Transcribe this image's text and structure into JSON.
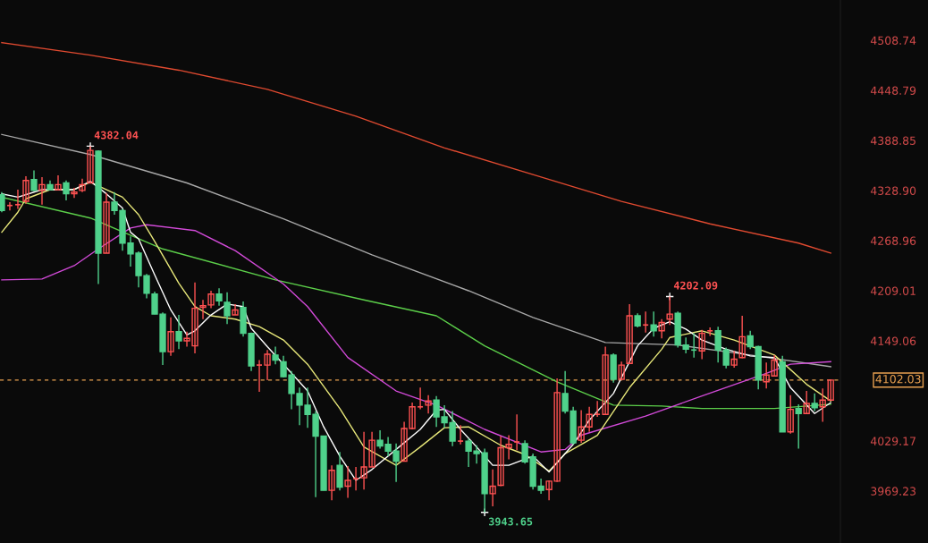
{
  "chart_data": {
    "type": "candlestick",
    "categories": [
      null,
      null,
      null,
      null,
      null,
      null,
      null,
      null,
      null,
      null,
      null,
      null,
      null,
      null,
      null,
      null,
      null,
      null,
      null,
      null,
      null,
      null,
      null,
      null,
      null,
      null,
      null,
      null,
      null,
      null,
      null,
      null,
      null,
      null,
      null,
      null,
      null,
      null,
      null,
      null,
      null,
      null,
      null,
      null,
      null,
      null,
      null,
      null,
      null,
      null,
      null,
      null,
      null,
      null,
      null,
      null,
      null,
      null,
      null,
      null,
      null,
      null,
      null,
      null,
      null,
      null,
      null,
      null,
      null,
      null,
      null,
      null,
      null,
      null,
      null,
      null,
      null,
      null,
      null,
      null,
      null,
      null,
      null,
      null,
      null,
      null,
      null,
      null,
      null,
      null,
      null,
      null,
      null,
      null,
      null,
      null,
      null,
      null,
      null,
      null,
      null,
      null,
      null,
      null
    ],
    "ohlc": [
      [
        4324,
        4327,
        4303,
        4305
      ],
      [
        4311,
        4315,
        4305,
        4311
      ],
      [
        4312,
        4330,
        4307,
        4312
      ],
      [
        4316,
        4346,
        4313,
        4341
      ],
      [
        4342,
        4353,
        4328,
        4329
      ],
      [
        4329,
        4345,
        4312,
        4336
      ],
      [
        4336,
        4341,
        4329,
        4330
      ],
      [
        4330,
        4347,
        4329,
        4336
      ],
      [
        4338,
        4341,
        4317,
        4325
      ],
      [
        4325,
        4332,
        4320,
        4327
      ],
      [
        4329,
        4343,
        4327,
        4336
      ],
      [
        4338,
        4382.04,
        4338,
        4377
      ],
      [
        4376,
        4377,
        4217,
        4254
      ],
      [
        4254,
        4326,
        4254,
        4315
      ],
      [
        4315,
        4327,
        4300,
        4305
      ],
      [
        4305,
        4307,
        4257,
        4266
      ],
      [
        4266,
        4274,
        4238,
        4253
      ],
      [
        4254,
        4256,
        4213,
        4227
      ],
      [
        4227,
        4229,
        4200,
        4206
      ],
      [
        4205,
        4208,
        4181,
        4181
      ],
      [
        4181,
        4183,
        4120,
        4136
      ],
      [
        4136,
        4177,
        4131,
        4160
      ],
      [
        4160,
        4180,
        4139,
        4149
      ],
      [
        4149,
        4160,
        4142,
        4152
      ],
      [
        4143,
        4219,
        4134,
        4188
      ],
      [
        4189,
        4198,
        4175,
        4191
      ],
      [
        4192,
        4209,
        4188,
        4205
      ],
      [
        4205,
        4212,
        4191,
        4197
      ],
      [
        4195,
        4207,
        4169,
        4179
      ],
      [
        4180,
        4193,
        4180,
        4186
      ],
      [
        4189,
        4196,
        4154,
        4158
      ],
      [
        4158,
        4159,
        4113,
        4119
      ],
      [
        4120,
        4126,
        4088,
        4120
      ],
      [
        4120,
        4138,
        4102,
        4133
      ],
      [
        4132,
        4142,
        4121,
        4126
      ],
      [
        4124,
        4131,
        4105,
        4106
      ],
      [
        4108,
        4113,
        4067,
        4086
      ],
      [
        4086,
        4093,
        4048,
        4072
      ],
      [
        4072,
        4093,
        4045,
        4061
      ],
      [
        4061,
        4065,
        3962,
        4035
      ],
      [
        4035,
        4035,
        3970,
        3970
      ],
      [
        3970,
        4000,
        3958,
        3994
      ],
      [
        4000,
        4016,
        3970,
        3974
      ],
      [
        3975,
        3999,
        3961,
        3982
      ],
      [
        3984,
        3998,
        3970,
        3984
      ],
      [
        3985,
        4040,
        3971,
        3998
      ],
      [
        3998,
        4040,
        3998,
        4030
      ],
      [
        4030,
        4042,
        4020,
        4023
      ],
      [
        4025,
        4034,
        4011,
        4017
      ],
      [
        4017,
        4026,
        3980,
        4005
      ],
      [
        4005,
        4052,
        4005,
        4044
      ],
      [
        4044,
        4075,
        4043,
        4070
      ],
      [
        4070,
        4093,
        4067,
        4070
      ],
      [
        4072,
        4084,
        4062,
        4077
      ],
      [
        4078,
        4083,
        4046,
        4058
      ],
      [
        4058,
        4072,
        4045,
        4051
      ],
      [
        4051,
        4065,
        4023,
        4029
      ],
      [
        4029,
        4048,
        4025,
        4029
      ],
      [
        4029,
        4032,
        3998,
        4017
      ],
      [
        4017,
        4024,
        4002,
        4014
      ],
      [
        4015,
        4020,
        3943.65,
        3966
      ],
      [
        3966,
        3995,
        3951,
        3975
      ],
      [
        3976,
        4035,
        3975,
        4021
      ],
      [
        4021,
        4036,
        4007,
        4025
      ],
      [
        4028,
        4061,
        4018,
        4028
      ],
      [
        4026,
        4030,
        4002,
        4004
      ],
      [
        4010,
        4014,
        3971,
        3975
      ],
      [
        3975,
        3984,
        3966,
        3970
      ],
      [
        3971,
        3982,
        3958,
        3981
      ],
      [
        3981,
        4104,
        3980,
        4087
      ],
      [
        4086,
        4113,
        4062,
        4065
      ],
      [
        4065,
        4070,
        4025,
        4027
      ],
      [
        4030,
        4066,
        4027,
        4046
      ],
      [
        4046,
        4070,
        4040,
        4061
      ],
      [
        4061,
        4077,
        4058,
        4061
      ],
      [
        4061,
        4142,
        4061,
        4132
      ],
      [
        4132,
        4134,
        4099,
        4103
      ],
      [
        4103,
        4124,
        4103,
        4120
      ],
      [
        4122,
        4193,
        4122,
        4179
      ],
      [
        4179,
        4182,
        4165,
        4167
      ],
      [
        4168,
        4184,
        4159,
        4168
      ],
      [
        4168,
        4184,
        4154,
        4161
      ],
      [
        4161,
        4175,
        4152,
        4171
      ],
      [
        4175,
        4202.09,
        4168,
        4181
      ],
      [
        4182,
        4184,
        4141,
        4144
      ],
      [
        4144,
        4153,
        4134,
        4139
      ],
      [
        4138,
        4158,
        4129,
        4138
      ],
      [
        4137,
        4162,
        4127,
        4158
      ],
      [
        4161,
        4165,
        4155,
        4161
      ],
      [
        4161,
        4166,
        4123,
        4138
      ],
      [
        4138,
        4141,
        4116,
        4120
      ],
      [
        4120,
        4137,
        4117,
        4127
      ],
      [
        4129,
        4179,
        4128,
        4154
      ],
      [
        4155,
        4161,
        4139,
        4142
      ],
      [
        4142,
        4143,
        4091,
        4102
      ],
      [
        4100,
        4123,
        4092,
        4108
      ],
      [
        4107,
        4132,
        4107,
        4126
      ],
      [
        4124,
        4131,
        4040,
        4040
      ],
      [
        4040,
        4084,
        4038,
        4067
      ],
      [
        4068,
        4073,
        4020,
        4062
      ],
      [
        4062,
        4089,
        4062,
        4074
      ],
      [
        4074,
        4086,
        4065,
        4069
      ],
      [
        4070,
        4092,
        4052,
        4078
      ],
      [
        4078,
        4103,
        4078,
        4102.03
      ]
    ],
    "colors": [
      "#4fd18b",
      "#ff5252",
      "#ff5252",
      "#ff5252",
      "#4fd18b",
      "#ff5252",
      "#4fd18b",
      "#ff5252",
      "#4fd18b",
      "#ff5252",
      "#ff5252",
      "#ff5252",
      "#4fd18b",
      "#ff5252",
      "#4fd18b",
      "#4fd18b",
      "#4fd18b",
      "#4fd18b",
      "#4fd18b",
      "#4fd18b",
      "#4fd18b",
      "#ff5252",
      "#4fd18b",
      "#ff5252",
      "#ff5252",
      "#ff5252",
      "#ff5252",
      "#4fd18b",
      "#4fd18b",
      "#ff5252",
      "#4fd18b",
      "#4fd18b",
      "#ff5252",
      "#ff5252",
      "#4fd18b",
      "#4fd18b",
      "#4fd18b",
      "#4fd18b",
      "#4fd18b",
      "#4fd18b",
      "#4fd18b",
      "#ff5252",
      "#4fd18b",
      "#ff5252",
      "#ff5252",
      "#ff5252",
      "#ff5252",
      "#4fd18b",
      "#4fd18b",
      "#4fd18b",
      "#ff5252",
      "#ff5252",
      "#ff5252",
      "#ff5252",
      "#4fd18b",
      "#4fd18b",
      "#4fd18b",
      "#ff5252",
      "#4fd18b",
      "#4fd18b",
      "#4fd18b",
      "#ff5252",
      "#ff5252",
      "#ff5252",
      "#ff5252",
      "#4fd18b",
      "#4fd18b",
      "#4fd18b",
      "#ff5252",
      "#ff5252",
      "#4fd18b",
      "#4fd18b",
      "#ff5252",
      "#ff5252",
      "#ff5252",
      "#ff5252",
      "#4fd18b",
      "#ff5252",
      "#ff5252",
      "#4fd18b",
      "#ff5252",
      "#4fd18b",
      "#ff5252",
      "#ff5252",
      "#4fd18b",
      "#4fd18b",
      "#4fd18b",
      "#ff5252",
      "#ff5252",
      "#4fd18b",
      "#4fd18b",
      "#ff5252",
      "#ff5252",
      "#4fd18b",
      "#4fd18b",
      "#ff5252",
      "#ff5252",
      "#4fd18b",
      "#ff5252",
      "#4fd18b",
      "#ff5252",
      "#4fd18b",
      "#ff5252",
      "#ff5252"
    ],
    "series": [
      {
        "type": "line",
        "color": "#e04a30",
        "values": [
          4506,
          null,
          null,
          null,
          null,
          null,
          null,
          null,
          null,
          null,
          null,
          4491,
          null,
          null,
          null,
          null,
          null,
          null,
          null,
          null,
          null,
          null,
          4473,
          null,
          null,
          null,
          null,
          null,
          null,
          null,
          null,
          null,
          null,
          4450,
          null,
          null,
          null,
          null,
          null,
          null,
          null,
          null,
          null,
          null,
          4418,
          null,
          null,
          null,
          null,
          null,
          null,
          null,
          null,
          null,
          null,
          4380,
          null,
          null,
          null,
          null,
          null,
          null,
          null,
          null,
          null,
          null,
          4348,
          null,
          null,
          null,
          null,
          null,
          null,
          null,
          null,
          null,
          null,
          4316,
          null,
          null,
          null,
          null,
          null,
          null,
          null,
          null,
          null,
          null,
          4289,
          null,
          null,
          null,
          null,
          null,
          null,
          null,
          null,
          null,
          null,
          4266,
          null,
          null,
          null,
          4254
        ]
      },
      {
        "type": "line",
        "color": "#a8a8a8",
        "values": [
          4396,
          null,
          null,
          null,
          null,
          null,
          null,
          null,
          null,
          null,
          null,
          4372,
          null,
          null,
          null,
          null,
          null,
          null,
          null,
          null,
          null,
          null,
          null,
          4338,
          null,
          null,
          null,
          null,
          null,
          null,
          null,
          null,
          null,
          null,
          null,
          4295,
          null,
          null,
          null,
          null,
          null,
          null,
          null,
          null,
          null,
          null,
          4252,
          null,
          null,
          null,
          null,
          null,
          null,
          null,
          null,
          null,
          null,
          null,
          4209,
          null,
          null,
          null,
          null,
          null,
          null,
          null,
          4177,
          null,
          null,
          null,
          null,
          null,
          null,
          null,
          null,
          4147,
          null,
          null,
          null,
          null,
          null,
          null,
          null,
          null,
          4144,
          null,
          null,
          null,
          null,
          null,
          null,
          null,
          null,
          4132,
          null,
          null,
          null,
          null,
          null,
          null,
          null,
          null,
          null,
          4118
        ]
      },
      {
        "type": "line",
        "color": "#5ccf4a",
        "values": [
          4321,
          null,
          null,
          null,
          null,
          null,
          null,
          null,
          null,
          null,
          null,
          4296,
          null,
          null,
          null,
          null,
          null,
          null,
          null,
          null,
          4259,
          null,
          null,
          null,
          null,
          null,
          null,
          null,
          null,
          null,
          null,
          null,
          null,
          null,
          4222,
          null,
          null,
          null,
          null,
          null,
          null,
          null,
          null,
          null,
          null,
          4198,
          null,
          null,
          null,
          null,
          null,
          null,
          null,
          null,
          4179,
          null,
          null,
          null,
          null,
          null,
          4143,
          null,
          null,
          null,
          null,
          null,
          null,
          null,
          null,
          4100,
          null,
          null,
          null,
          null,
          null,
          null,
          4072,
          null,
          null,
          null,
          null,
          null,
          4071,
          null,
          null,
          null,
          null,
          4068,
          null,
          null,
          null,
          null,
          null,
          null,
          null,
          null,
          4068,
          null,
          null,
          null,
          null,
          null,
          null,
          4073
        ]
      },
      {
        "type": "line",
        "color": "#d24ad8",
        "values": [
          4222,
          null,
          null,
          null,
          null,
          4223,
          null,
          null,
          null,
          4239,
          null,
          null,
          4259,
          null,
          null,
          null,
          4284,
          null,
          4288,
          null,
          null,
          null,
          null,
          null,
          4281,
          null,
          null,
          null,
          null,
          4257,
          null,
          null,
          null,
          null,
          null,
          4217,
          null,
          null,
          4190,
          null,
          null,
          null,
          null,
          4129,
          null,
          null,
          null,
          null,
          null,
          4089,
          null,
          null,
          null,
          null,
          4072,
          null,
          null,
          null,
          null,
          null,
          4043,
          null,
          null,
          null,
          null,
          null,
          null,
          4016,
          null,
          null,
          4019,
          null,
          4036,
          null,
          null,
          null,
          null,
          null,
          null,
          null,
          4059,
          null,
          null,
          null,
          null,
          null,
          null,
          4083,
          null,
          null,
          null,
          null,
          null,
          null,
          null,
          4110,
          null,
          null,
          4121,
          null,
          null,
          null,
          null,
          4124
        ]
      },
      {
        "type": "line",
        "color": "#e8e87a",
        "values": [
          4279,
          null,
          4303,
          4319,
          null,
          null,
          4330,
          null,
          null,
          4330,
          null,
          4339,
          null,
          null,
          null,
          4321,
          null,
          4300,
          null,
          4268,
          null,
          null,
          4218,
          null,
          4190,
          null,
          4179,
          null,
          null,
          4175,
          null,
          null,
          4166,
          null,
          null,
          4150,
          null,
          null,
          4121,
          null,
          null,
          null,
          4068,
          null,
          null,
          4022,
          null,
          null,
          null,
          4000,
          null,
          null,
          4022,
          null,
          null,
          4045,
          null,
          null,
          4046,
          null,
          null,
          null,
          4024,
          null,
          null,
          4013,
          null,
          null,
          3993,
          null,
          4014,
          null,
          null,
          null,
          4036,
          null,
          null,
          null,
          4093,
          null,
          null,
          null,
          4139,
          4153,
          null,
          null,
          null,
          4161,
          null,
          null,
          null,
          4150,
          null,
          null,
          null,
          null,
          4132,
          null,
          null,
          null,
          4097,
          null,
          null,
          4077
        ]
      },
      {
        "type": "line",
        "color": "#ffffff",
        "values": [
          4325,
          null,
          4321,
          null,
          null,
          4330,
          null,
          null,
          null,
          4330,
          null,
          4340,
          null,
          4325,
          null,
          4308,
          4279,
          4271,
          null,
          4228,
          null,
          4186,
          null,
          4156,
          4161,
          null,
          4180,
          null,
          4193,
          null,
          4190,
          4164,
          null,
          4142,
          null,
          4121,
          null,
          null,
          4089,
          null,
          4046,
          null,
          4011,
          null,
          3982,
          null,
          3995,
          null,
          null,
          4019,
          null,
          null,
          4043,
          null,
          4066,
          4067,
          null,
          4043,
          null,
          4022,
          null,
          4000,
          null,
          4000,
          null,
          null,
          4011,
          null,
          3992,
          null,
          4014,
          4025,
          null,
          4054,
          null,
          null,
          4086,
          null,
          null,
          4143,
          null,
          4164,
          null,
          4172,
          null,
          4163,
          null,
          4150,
          null,
          null,
          4139,
          null,
          null,
          4131,
          null,
          null,
          4129,
          null,
          4093,
          null,
          null,
          4062,
          null,
          4075
        ]
      }
    ],
    "annotations": [
      "4382.04",
      "4202.09",
      "3943.65"
    ],
    "ref_lines": [
      {
        "axis": "y",
        "value": 4102.03,
        "label": "4102.03",
        "color": "#e8a050",
        "line_style": "dashed"
      }
    ],
    "ylim": [
      3907,
      4557
    ],
    "yticks": [
      {
        "value": 4508.74,
        "label": "4508.74"
      },
      {
        "value": 4448.79,
        "label": "4448.79"
      },
      {
        "value": 4388.85,
        "label": "4388.85"
      },
      {
        "value": 4328.9,
        "label": "4328.90"
      },
      {
        "value": 4268.96,
        "label": "4268.96"
      },
      {
        "value": 4209.01,
        "label": "4209.01"
      },
      {
        "value": 4149.06,
        "label": "4149.06"
      },
      {
        "value": 4029.17,
        "label": "4029.17"
      },
      {
        "value": 3969.23,
        "label": "3969.23"
      }
    ],
    "tick_labels": "y",
    "grid": false
  }
}
